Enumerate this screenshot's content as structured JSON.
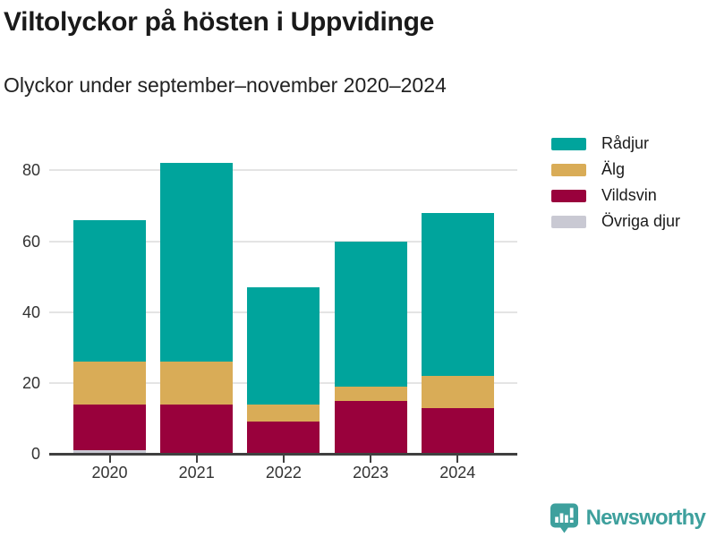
{
  "title": "Viltolyckor på hösten i Uppvidinge",
  "subtitle": "Olyckor under september–november 2020–2024",
  "chart_data": {
    "type": "bar",
    "stacked": true,
    "title": "Viltolyckor på hösten i Uppvidinge",
    "subtitle": "Olyckor under september–november 2020–2024",
    "categories": [
      "2020",
      "2021",
      "2022",
      "2023",
      "2024"
    ],
    "series": [
      {
        "name": "Rådjur",
        "color": "#00A49C",
        "values": [
          40,
          56,
          33,
          41,
          46
        ]
      },
      {
        "name": "Älg",
        "color": "#D9AC57",
        "values": [
          12,
          12,
          5,
          4,
          9
        ]
      },
      {
        "name": "Vildsvin",
        "color": "#99013C",
        "values": [
          13,
          14,
          9,
          15,
          13
        ]
      },
      {
        "name": "Övriga djur",
        "color": "#C9C9D3",
        "values": [
          1,
          0,
          0,
          0,
          0
        ]
      }
    ],
    "stack_order_bottom_to_top": [
      "Övriga djur",
      "Vildsvin",
      "Älg",
      "Rådjur"
    ],
    "totals": [
      66,
      82,
      47,
      60,
      68
    ],
    "xlabel": "",
    "ylabel": "",
    "ylim": [
      0,
      80
    ],
    "yticks": [
      0,
      20,
      40,
      60,
      80
    ],
    "grid": true,
    "legend_position": "right"
  },
  "colors": {
    "axis": "#404040",
    "grid": "#E4E4E4",
    "brand": "#3EA09D"
  },
  "footer": {
    "brand": "Newsworthy"
  }
}
